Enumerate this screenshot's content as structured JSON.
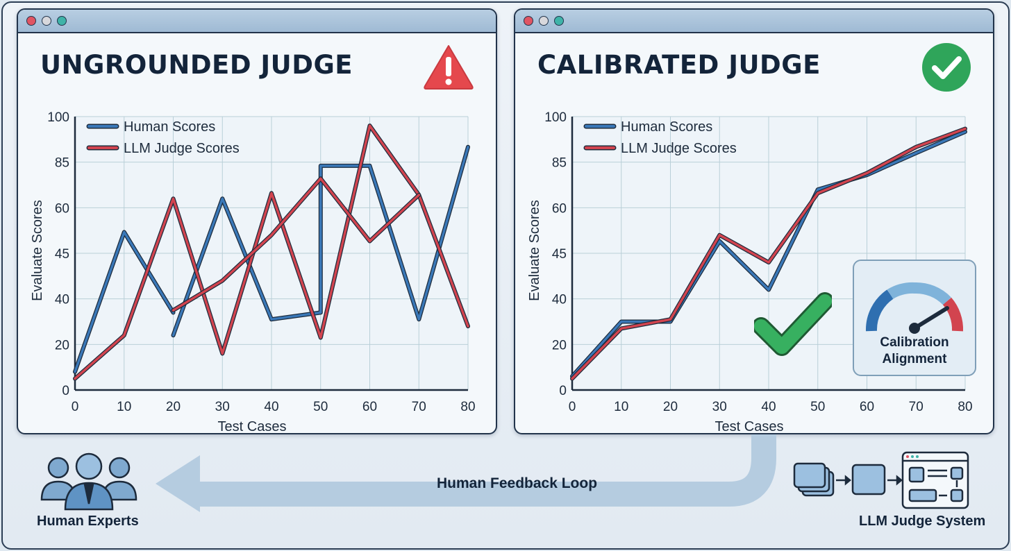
{
  "panels": [
    {
      "title": "UNGROUNDED JUDGE",
      "status_icon": "warning-icon",
      "status_color": "#e5484d"
    },
    {
      "title": "CALIBRATED JUDGE",
      "status_icon": "checkmark-circle-icon",
      "status_color": "#2fa55a"
    }
  ],
  "gauge": {
    "label_line1": "Calibration",
    "label_line2": "Alignment",
    "icon": "gauge-icon"
  },
  "flow": {
    "loop_label": "Human Feedback Loop",
    "left_label": "Human Experts",
    "right_label": "LLM Judge System"
  },
  "colors": {
    "human": "#3a78b8",
    "llm": "#d2444f"
  },
  "chart_data": [
    {
      "type": "line",
      "xlabel": "Test Cases",
      "ylabel": "Evaluate Scores",
      "xlim": [
        0,
        80
      ],
      "xticks": [
        0,
        10,
        20,
        30,
        40,
        50,
        60,
        70,
        80
      ],
      "yticks": [
        "0",
        "20",
        "40",
        "45",
        "60",
        "85",
        "100"
      ],
      "grid": true,
      "legend": "top-left",
      "series": [
        {
          "name": "Human Scores",
          "color": "#3a78b8",
          "segments": [
            [
              [
                0,
                8
              ],
              [
                10,
                52
              ],
              [
                20,
                34
              ]
            ],
            [
              [
                20,
                24
              ],
              [
                30,
                65
              ],
              [
                40,
                31
              ],
              [
                50,
                34
              ],
              [
                50,
                83
              ],
              [
                60,
                83
              ],
              [
                70,
                31
              ],
              [
                80,
                90
              ]
            ]
          ]
        },
        {
          "name": "LLM Judge Scores",
          "color": "#d2444f",
          "segments": [
            [
              [
                0,
                5
              ],
              [
                10,
                24
              ],
              [
                20,
                65
              ],
              [
                30,
                16
              ],
              [
                40,
                68
              ],
              [
                50,
                23
              ],
              [
                60,
                97
              ],
              [
                70,
                67
              ],
              [
                80,
                28
              ]
            ],
            [
              [
                20,
                35
              ],
              [
                30,
                42
              ],
              [
                40,
                51
              ],
              [
                50,
                76
              ],
              [
                60,
                49
              ],
              [
                70,
                67
              ]
            ]
          ]
        }
      ]
    },
    {
      "type": "line",
      "xlabel": "Test Cases",
      "ylabel": "Evaluate Scores",
      "xlim": [
        0,
        80
      ],
      "xticks": [
        0,
        10,
        20,
        30,
        40,
        50,
        60,
        70,
        80
      ],
      "yticks": [
        "0",
        "20",
        "40",
        "45",
        "60",
        "85",
        "100"
      ],
      "grid": true,
      "legend": "top-left",
      "series": [
        {
          "name": "Human Scores",
          "color": "#3a78b8",
          "segments": [
            [
              [
                0,
                6
              ],
              [
                10,
                30
              ],
              [
                20,
                30
              ],
              [
                30,
                49
              ],
              [
                40,
                41
              ],
              [
                50,
                70
              ],
              [
                60,
                78
              ],
              [
                70,
                88
              ],
              [
                80,
                95
              ]
            ]
          ]
        },
        {
          "name": "LLM Judge Scores",
          "color": "#d2444f",
          "segments": [
            [
              [
                0,
                5
              ],
              [
                10,
                27
              ],
              [
                20,
                31
              ],
              [
                30,
                51
              ],
              [
                40,
                44
              ],
              [
                50,
                68
              ],
              [
                60,
                79
              ],
              [
                70,
                90
              ],
              [
                80,
                96
              ]
            ]
          ]
        }
      ]
    }
  ]
}
